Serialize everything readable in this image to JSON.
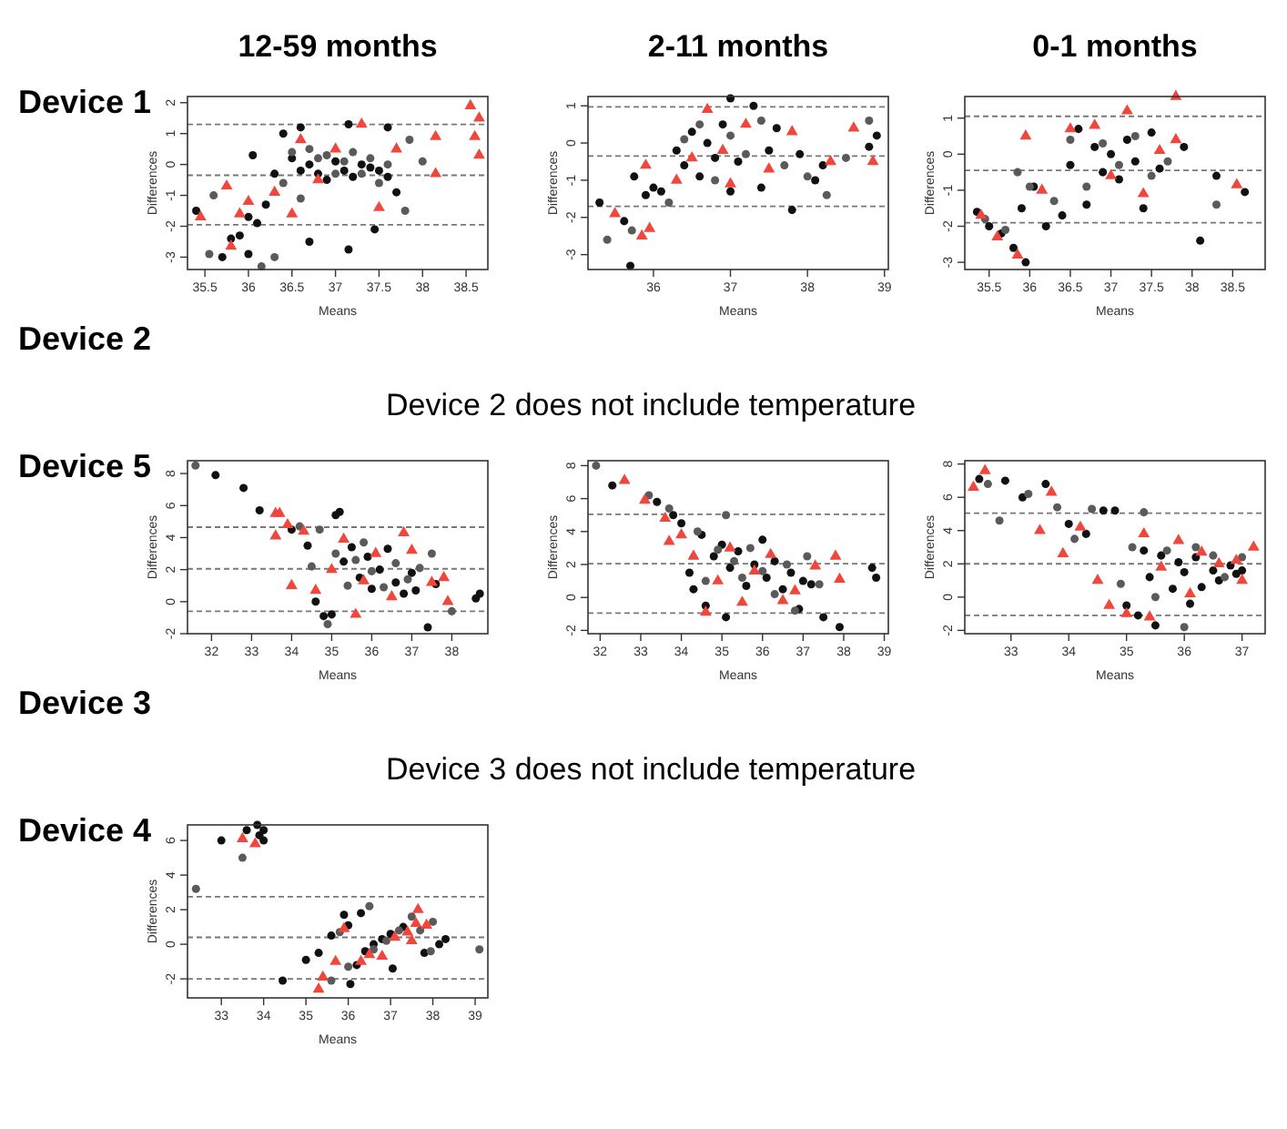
{
  "chart_data": [
    {
      "type": "other",
      "title": "Device 1"
    },
    {
      "type": "scatter",
      "title": "12-59 months",
      "xlabel": "Means",
      "ylabel": "Differences",
      "xlim": [
        35.3,
        38.75
      ],
      "ylim": [
        -3.4,
        2.2
      ],
      "xticks": [
        35.5,
        36.0,
        36.5,
        37.0,
        37.5,
        38.0,
        38.5
      ],
      "yticks": [
        -3,
        -2,
        -1,
        0,
        1,
        2
      ],
      "grid": false,
      "ref_lines": [
        {
          "axis": "y",
          "value": 1.3,
          "line_style": "dashed",
          "color": "#777777"
        },
        {
          "axis": "y",
          "value": -0.35,
          "line_style": "dashed",
          "color": "#777777"
        },
        {
          "axis": "y",
          "value": -1.95,
          "line_style": "dashed",
          "color": "#777777"
        }
      ],
      "series": [
        {
          "color": "#111111",
          "marker": "circle",
          "x": [
            35.4,
            35.7,
            35.8,
            35.9,
            36.0,
            36.0,
            36.05,
            36.1,
            36.2,
            36.3,
            36.4,
            36.5,
            36.6,
            36.6,
            36.7,
            36.7,
            36.8,
            36.9,
            37.0,
            37.1,
            37.15,
            37.15,
            37.2,
            37.3,
            37.4,
            37.45,
            37.5,
            37.6,
            37.6,
            37.7
          ],
          "values": [
            -1.5,
            -3.0,
            -2.4,
            -2.3,
            -2.9,
            -1.7,
            0.3,
            -1.9,
            -1.3,
            -0.3,
            1.0,
            0.2,
            1.2,
            -0.2,
            -2.5,
            0.0,
            -0.3,
            -0.5,
            0.1,
            -0.2,
            1.3,
            -2.75,
            -0.4,
            0.0,
            -0.1,
            -2.1,
            -0.2,
            1.2,
            -0.4,
            -0.9
          ]
        },
        {
          "color": "#5a5a5a",
          "marker": "circle",
          "x": [
            35.55,
            35.6,
            36.15,
            36.3,
            36.4,
            36.5,
            36.6,
            36.7,
            36.8,
            36.9,
            37.0,
            37.1,
            37.2,
            37.3,
            37.4,
            37.5,
            37.6,
            37.8,
            37.85,
            38.0
          ],
          "values": [
            -2.9,
            -1.0,
            -3.3,
            -3.0,
            -0.6,
            0.4,
            -1.1,
            0.5,
            0.2,
            0.3,
            -0.3,
            0.1,
            0.4,
            -0.3,
            0.2,
            -0.6,
            0.0,
            -1.5,
            0.8,
            0.1
          ]
        },
        {
          "color": "#f0463c",
          "marker": "triangle",
          "x": [
            35.45,
            35.75,
            35.8,
            35.9,
            36.0,
            36.3,
            36.5,
            36.6,
            36.8,
            37.0,
            37.3,
            37.5,
            37.7,
            38.15,
            38.15,
            38.55,
            38.6,
            38.65,
            38.65
          ],
          "values": [
            -1.7,
            -0.7,
            -2.65,
            -1.6,
            -1.2,
            -0.9,
            -1.6,
            0.8,
            -0.5,
            0.5,
            1.3,
            -1.4,
            0.5,
            0.9,
            -0.3,
            1.9,
            0.9,
            1.5,
            0.3
          ]
        }
      ]
    },
    {
      "type": "scatter",
      "title": "2-11 months",
      "xlabel": "Means",
      "ylabel": "Differences",
      "xlim": [
        35.15,
        39.05
      ],
      "ylim": [
        -3.4,
        1.25
      ],
      "xticks": [
        36,
        37,
        38,
        39
      ],
      "yticks": [
        -3,
        -2,
        -1,
        0,
        1
      ],
      "grid": false,
      "ref_lines": [
        {
          "axis": "y",
          "value": 0.97,
          "line_style": "dashed",
          "color": "#777777"
        },
        {
          "axis": "y",
          "value": -0.35,
          "line_style": "dashed",
          "color": "#777777"
        },
        {
          "axis": "y",
          "value": -1.7,
          "line_style": "dashed",
          "color": "#777777"
        }
      ],
      "series": [
        {
          "color": "#111111",
          "marker": "circle",
          "x": [
            35.3,
            35.62,
            35.7,
            35.75,
            35.9,
            36.0,
            36.1,
            36.3,
            36.4,
            36.5,
            36.6,
            36.7,
            36.8,
            36.9,
            37.0,
            37.0,
            37.1,
            37.3,
            37.4,
            37.5,
            37.6,
            37.8,
            37.9,
            38.1,
            38.2,
            38.8,
            38.9
          ],
          "values": [
            -1.6,
            -2.1,
            -3.3,
            -0.9,
            -1.4,
            -1.2,
            -1.3,
            -0.2,
            -0.6,
            0.3,
            -0.9,
            0.0,
            -0.4,
            0.5,
            1.2,
            -1.3,
            -0.5,
            1.0,
            -1.2,
            -0.2,
            0.4,
            -1.8,
            -0.3,
            -1.0,
            -0.6,
            -0.1,
            0.2
          ]
        },
        {
          "color": "#5a5a5a",
          "marker": "circle",
          "x": [
            35.4,
            35.72,
            36.2,
            36.4,
            36.6,
            36.8,
            37.0,
            37.2,
            37.4,
            37.7,
            38.0,
            38.25,
            38.5,
            38.8
          ],
          "values": [
            -2.6,
            -2.35,
            -1.6,
            0.1,
            0.5,
            -1.0,
            0.2,
            -0.3,
            0.6,
            -0.6,
            -0.9,
            -1.4,
            -0.4,
            0.6
          ]
        },
        {
          "color": "#f0463c",
          "marker": "triangle",
          "x": [
            35.5,
            35.85,
            35.95,
            35.9,
            36.3,
            36.5,
            36.7,
            36.9,
            37.0,
            37.2,
            37.5,
            37.8,
            38.3,
            38.6,
            38.85
          ],
          "values": [
            -1.9,
            -2.5,
            -2.3,
            -0.6,
            -1.0,
            -0.4,
            0.9,
            -0.2,
            -1.1,
            0.5,
            -0.7,
            0.3,
            -0.5,
            0.4,
            -0.5
          ]
        }
      ]
    },
    {
      "type": "scatter",
      "title": "0-1 months",
      "xlabel": "Means",
      "ylabel": "Differences",
      "xlim": [
        35.2,
        38.9
      ],
      "ylim": [
        -3.2,
        1.6
      ],
      "xticks": [
        35.5,
        36.0,
        36.5,
        37.0,
        37.5,
        38.0,
        38.5
      ],
      "yticks": [
        -3,
        -2,
        -1,
        0,
        1
      ],
      "grid": false,
      "ref_lines": [
        {
          "axis": "y",
          "value": 1.05,
          "line_style": "dashed",
          "color": "#777777"
        },
        {
          "axis": "y",
          "value": -0.45,
          "line_style": "dashed",
          "color": "#777777"
        },
        {
          "axis": "y",
          "value": -1.9,
          "line_style": "dashed",
          "color": "#777777"
        }
      ],
      "series": [
        {
          "color": "#111111",
          "marker": "circle",
          "x": [
            35.35,
            35.5,
            35.65,
            35.8,
            35.95,
            35.9,
            36.05,
            36.2,
            36.4,
            36.5,
            36.6,
            36.7,
            36.8,
            36.9,
            37.0,
            37.1,
            37.2,
            37.3,
            37.4,
            37.5,
            37.6,
            37.9,
            38.1,
            38.3,
            38.65
          ],
          "values": [
            -1.6,
            -2.0,
            -2.2,
            -2.6,
            -3.0,
            -1.5,
            -0.9,
            -2.0,
            -1.7,
            -0.3,
            0.7,
            -1.4,
            0.2,
            -0.5,
            0.0,
            -0.7,
            0.4,
            -0.2,
            -1.5,
            0.6,
            -0.4,
            0.2,
            -2.4,
            -0.6,
            -1.05
          ]
        },
        {
          "color": "#5a5a5a",
          "marker": "circle",
          "x": [
            35.45,
            35.7,
            35.85,
            36.0,
            36.3,
            36.5,
            36.7,
            36.9,
            37.1,
            37.3,
            37.5,
            37.7,
            38.3
          ],
          "values": [
            -1.8,
            -2.1,
            -0.5,
            -0.9,
            -1.3,
            0.4,
            -0.9,
            0.3,
            -0.3,
            0.5,
            -0.6,
            -0.2,
            -1.4
          ]
        },
        {
          "color": "#f0463c",
          "marker": "triangle",
          "x": [
            35.4,
            35.6,
            35.85,
            35.95,
            36.15,
            36.5,
            36.8,
            37.0,
            37.2,
            37.4,
            37.6,
            37.8,
            37.8,
            38.55
          ],
          "values": [
            -1.7,
            -2.3,
            -2.8,
            0.5,
            -1.0,
            0.7,
            0.8,
            -0.6,
            1.2,
            -1.1,
            0.1,
            1.6,
            0.4,
            -0.85
          ]
        }
      ]
    },
    {
      "type": "other",
      "title": "Device 2",
      "annotations": [
        "Device 2 does not include temperature"
      ]
    },
    {
      "type": "other",
      "title": "Device 5"
    },
    {
      "type": "scatter",
      "xlabel": "Means",
      "ylabel": "Differences",
      "xlim": [
        31.4,
        38.9
      ],
      "ylim": [
        -2,
        8.8
      ],
      "xticks": [
        32,
        33,
        34,
        35,
        36,
        37,
        38
      ],
      "yticks": [
        -2,
        0,
        2,
        4,
        6,
        8
      ],
      "grid": false,
      "ref_lines": [
        {
          "axis": "y",
          "value": 4.65,
          "line_style": "dashed",
          "color": "#777777"
        },
        {
          "axis": "y",
          "value": 2.05,
          "line_style": "dashed",
          "color": "#777777"
        },
        {
          "axis": "y",
          "value": -0.6,
          "line_style": "dashed",
          "color": "#777777"
        }
      ],
      "series": [
        {
          "color": "#111111",
          "marker": "circle",
          "x": [
            32.1,
            32.8,
            33.2,
            34.0,
            34.4,
            34.6,
            34.8,
            35.0,
            35.1,
            35.2,
            35.3,
            35.5,
            35.7,
            35.9,
            36.0,
            36.2,
            36.4,
            36.6,
            36.8,
            37.0,
            37.1,
            37.4,
            37.6,
            38.6,
            38.7
          ],
          "values": [
            7.9,
            7.1,
            5.7,
            4.5,
            3.5,
            0.0,
            -0.9,
            -0.8,
            5.4,
            5.6,
            2.5,
            3.4,
            1.5,
            2.8,
            0.8,
            2.0,
            3.3,
            1.2,
            0.5,
            1.8,
            0.7,
            -1.6,
            1.1,
            0.2,
            0.5
          ]
        },
        {
          "color": "#5a5a5a",
          "marker": "circle",
          "x": [
            31.6,
            34.2,
            34.5,
            34.7,
            34.9,
            35.1,
            35.4,
            35.6,
            35.8,
            36.0,
            36.3,
            36.6,
            36.9,
            37.2,
            37.5,
            38.0
          ],
          "values": [
            8.5,
            4.7,
            2.2,
            4.5,
            -1.4,
            3.0,
            1.0,
            2.6,
            3.7,
            1.9,
            0.9,
            2.4,
            1.4,
            2.1,
            3.0,
            -0.6
          ]
        },
        {
          "color": "#f0463c",
          "marker": "triangle",
          "x": [
            33.6,
            33.7,
            33.6,
            33.9,
            34.3,
            34.0,
            34.6,
            35.0,
            35.3,
            35.6,
            35.8,
            36.1,
            36.5,
            36.8,
            37.0,
            37.5,
            37.8,
            37.9
          ],
          "values": [
            5.5,
            5.5,
            4.1,
            4.8,
            4.4,
            1.0,
            0.7,
            2.0,
            3.9,
            -0.8,
            1.3,
            3.0,
            0.3,
            4.3,
            3.2,
            1.2,
            1.5,
            0.0
          ]
        }
      ]
    },
    {
      "type": "scatter",
      "xlabel": "Means",
      "ylabel": "Differences",
      "xlim": [
        31.7,
        39.1
      ],
      "ylim": [
        -2.2,
        8.3
      ],
      "xticks": [
        32,
        33,
        34,
        35,
        36,
        37,
        38,
        39
      ],
      "yticks": [
        -2,
        0,
        2,
        4,
        6,
        8
      ],
      "grid": false,
      "ref_lines": [
        {
          "axis": "y",
          "value": 5.05,
          "line_style": "dashed",
          "color": "#777777"
        },
        {
          "axis": "y",
          "value": 2.05,
          "line_style": "dashed",
          "color": "#777777"
        },
        {
          "axis": "y",
          "value": -0.95,
          "line_style": "dashed",
          "color": "#777777"
        }
      ],
      "series": [
        {
          "color": "#111111",
          "marker": "circle",
          "x": [
            32.3,
            33.4,
            33.8,
            34.0,
            34.2,
            34.3,
            34.5,
            34.6,
            34.8,
            35.0,
            35.1,
            35.2,
            35.4,
            35.6,
            35.8,
            36.0,
            36.1,
            36.3,
            36.5,
            36.7,
            36.9,
            37.0,
            37.2,
            37.5,
            37.9,
            38.7,
            38.8
          ],
          "values": [
            6.8,
            5.8,
            5.0,
            4.5,
            1.5,
            0.5,
            3.8,
            -0.5,
            2.5,
            3.2,
            -1.2,
            1.8,
            2.8,
            0.7,
            2.0,
            3.5,
            1.2,
            2.2,
            0.5,
            1.5,
            -0.7,
            1.0,
            0.8,
            -1.2,
            -1.8,
            1.8,
            1.2
          ]
        },
        {
          "color": "#5a5a5a",
          "marker": "circle",
          "x": [
            31.9,
            33.2,
            33.7,
            34.4,
            34.6,
            34.9,
            35.1,
            35.3,
            35.5,
            35.7,
            36.0,
            36.3,
            36.6,
            36.8,
            37.1,
            37.4
          ],
          "values": [
            8.0,
            6.2,
            5.4,
            4.0,
            1.0,
            2.9,
            5.0,
            2.2,
            1.2,
            3.0,
            1.6,
            0.2,
            2.0,
            -0.8,
            2.5,
            0.8
          ]
        },
        {
          "color": "#f0463c",
          "marker": "triangle",
          "x": [
            32.6,
            33.1,
            33.6,
            34.0,
            33.7,
            34.3,
            34.6,
            34.9,
            35.2,
            35.5,
            35.8,
            36.2,
            36.5,
            36.8,
            37.3,
            37.8,
            37.9
          ],
          "values": [
            7.1,
            5.9,
            4.8,
            3.8,
            3.4,
            2.5,
            -0.9,
            1.0,
            3.0,
            -0.3,
            1.6,
            2.6,
            -0.2,
            0.4,
            1.9,
            2.5,
            1.1
          ]
        }
      ]
    },
    {
      "type": "scatter",
      "xlabel": "Means",
      "ylabel": "Differences",
      "xlim": [
        32.2,
        37.4
      ],
      "ylim": [
        -2.2,
        8.2
      ],
      "xticks": [
        33,
        34,
        35,
        36,
        37
      ],
      "yticks": [
        -2,
        0,
        2,
        4,
        6,
        8
      ],
      "grid": false,
      "ref_lines": [
        {
          "axis": "y",
          "value": 5.05,
          "line_style": "dashed",
          "color": "#777777"
        },
        {
          "axis": "y",
          "value": 2.0,
          "line_style": "dashed",
          "color": "#777777"
        },
        {
          "axis": "y",
          "value": -1.1,
          "line_style": "dashed",
          "color": "#777777"
        }
      ],
      "series": [
        {
          "color": "#111111",
          "marker": "circle",
          "x": [
            32.45,
            32.9,
            33.2,
            33.6,
            34.0,
            34.3,
            34.6,
            34.8,
            35.0,
            35.2,
            35.3,
            35.4,
            35.5,
            35.6,
            35.8,
            35.9,
            36.0,
            36.1,
            36.2,
            36.3,
            36.5,
            36.6,
            36.8,
            36.9,
            37.0
          ],
          "values": [
            7.1,
            7.0,
            6.0,
            6.8,
            4.4,
            3.8,
            5.2,
            5.2,
            -0.5,
            -1.1,
            2.8,
            1.2,
            -1.7,
            2.5,
            0.5,
            2.1,
            1.5,
            -0.4,
            2.4,
            0.6,
            1.6,
            1.0,
            1.9,
            1.4,
            1.6
          ]
        },
        {
          "color": "#5a5a5a",
          "marker": "circle",
          "x": [
            32.6,
            32.8,
            33.3,
            33.8,
            34.1,
            34.4,
            34.9,
            35.1,
            35.3,
            35.5,
            35.7,
            36.0,
            36.2,
            36.5,
            36.7,
            37.0
          ],
          "values": [
            6.8,
            4.6,
            6.2,
            5.4,
            3.5,
            5.3,
            0.8,
            3.0,
            5.1,
            0.0,
            2.8,
            -1.8,
            3.0,
            2.5,
            1.2,
            2.4
          ]
        },
        {
          "color": "#f0463c",
          "marker": "triangle",
          "x": [
            32.35,
            32.55,
            33.5,
            33.7,
            33.9,
            34.2,
            34.5,
            34.7,
            35.0,
            35.3,
            35.4,
            35.6,
            35.9,
            36.1,
            36.3,
            36.6,
            36.9,
            37.2,
            37.0
          ],
          "values": [
            6.6,
            7.6,
            4.0,
            6.3,
            2.6,
            4.2,
            1.0,
            -0.5,
            -1.0,
            3.8,
            -1.2,
            1.8,
            3.4,
            0.2,
            2.7,
            2.0,
            2.2,
            3.0,
            1.0
          ]
        }
      ]
    },
    {
      "type": "other",
      "title": "Device 3",
      "annotations": [
        "Device 3 does not include temperature"
      ]
    },
    {
      "type": "other",
      "title": "Device 4"
    },
    {
      "type": "scatter",
      "xlabel": "Means",
      "ylabel": "Differences",
      "xlim": [
        32.2,
        39.3
      ],
      "ylim": [
        -3.1,
        6.9
      ],
      "xticks": [
        33,
        34,
        35,
        36,
        37,
        38,
        39
      ],
      "yticks": [
        -2,
        0,
        2,
        4,
        6
      ],
      "grid": false,
      "ref_lines": [
        {
          "axis": "y",
          "value": 2.75,
          "line_style": "dashed",
          "color": "#777777"
        },
        {
          "axis": "y",
          "value": 0.4,
          "line_style": "dashed",
          "color": "#777777"
        },
        {
          "axis": "y",
          "value": -2.0,
          "line_style": "dashed",
          "color": "#777777"
        }
      ],
      "series": [
        {
          "color": "#111111",
          "marker": "circle",
          "x": [
            33.0,
            33.6,
            33.85,
            33.9,
            34.0,
            34.0,
            34.45,
            35.0,
            35.3,
            35.6,
            35.9,
            36.0,
            36.05,
            36.2,
            36.3,
            36.4,
            36.6,
            36.8,
            37.0,
            37.05,
            37.3,
            37.8,
            38.15,
            38.3
          ],
          "values": [
            6.0,
            6.6,
            6.9,
            6.3,
            6.0,
            6.6,
            -2.1,
            -0.9,
            -0.5,
            0.5,
            1.7,
            1.1,
            -2.3,
            -1.2,
            1.8,
            -0.4,
            0.0,
            0.3,
            0.6,
            -1.4,
            1.0,
            -0.5,
            0.0,
            0.3
          ]
        },
        {
          "color": "#5a5a5a",
          "marker": "circle",
          "x": [
            32.4,
            33.5,
            35.6,
            35.8,
            36.0,
            36.5,
            36.6,
            36.9,
            37.2,
            37.5,
            37.7,
            37.95,
            38.0,
            39.1
          ],
          "values": [
            3.2,
            5.0,
            -2.1,
            0.7,
            -1.3,
            2.2,
            -0.3,
            0.2,
            0.8,
            1.6,
            0.8,
            -0.4,
            1.3,
            -0.3
          ]
        },
        {
          "color": "#f0463c",
          "marker": "triangle",
          "x": [
            33.5,
            33.8,
            35.3,
            35.4,
            35.7,
            35.9,
            36.3,
            36.5,
            36.8,
            37.1,
            37.4,
            37.6,
            37.65,
            37.85,
            37.5
          ],
          "values": [
            6.1,
            5.8,
            -2.6,
            -1.9,
            -1.0,
            0.9,
            -1.0,
            -0.6,
            -0.7,
            0.4,
            0.7,
            1.2,
            2.0,
            1.1,
            0.2
          ]
        }
      ]
    }
  ]
}
